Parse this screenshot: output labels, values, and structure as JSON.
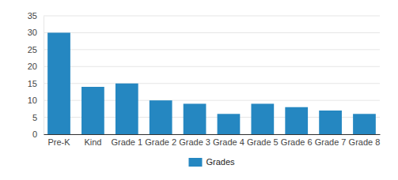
{
  "chart_data": {
    "type": "bar",
    "categories": [
      "Pre-K",
      "Kind",
      "Grade 1",
      "Grade 2",
      "Grade 3",
      "Grade 4",
      "Grade 5",
      "Grade 6",
      "Grade 7",
      "Grade 8"
    ],
    "series": [
      {
        "name": "Grades",
        "color": "#2587c1",
        "values": [
          30,
          14,
          15,
          10,
          9,
          6,
          9,
          8,
          7,
          6
        ]
      }
    ],
    "ylim": [
      0,
      35
    ],
    "yticks": [
      0,
      5,
      10,
      15,
      20,
      25,
      30,
      35
    ],
    "grid": true,
    "legend": "bottom"
  }
}
